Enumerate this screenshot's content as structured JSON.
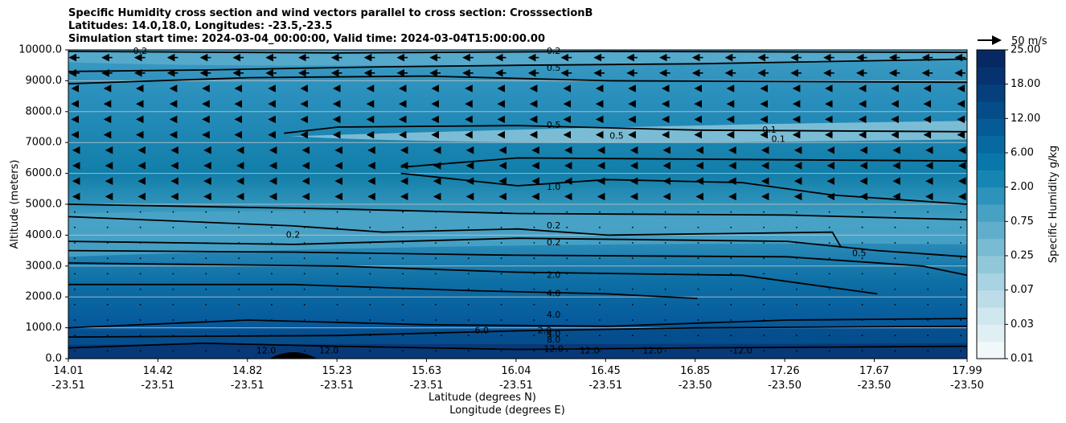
{
  "title_lines": [
    "Specific Humidity cross section and wind vectors parallel to cross section: CrosssectionB",
    "Latitudes: 14.0,18.0, Longitudes: -23.5,-23.5",
    "Simulation start time: 2024-03-04_00:00:00, Valid time: 2024-03-04T15:00:00.00"
  ],
  "chart_data": {
    "type": "heatmap",
    "title": "Specific Humidity cross section and wind vectors parallel to cross section: CrosssectionB",
    "ylabel": "Altitude (meters)",
    "xlabel_lines": [
      "Latitude (degrees N)",
      "Longitude (degrees E)"
    ],
    "ylim": [
      0,
      10000
    ],
    "y_ticks": [
      "0.0",
      "1000.0",
      "2000.0",
      "3000.0",
      "4000.0",
      "5000.0",
      "6000.0",
      "7000.0",
      "8000.0",
      "9000.0",
      "10000.0"
    ],
    "x_ticks": [
      {
        "lat": "14.01",
        "lon": "-23.51"
      },
      {
        "lat": "14.42",
        "lon": "-23.51"
      },
      {
        "lat": "14.82",
        "lon": "-23.51"
      },
      {
        "lat": "15.23",
        "lon": "-23.51"
      },
      {
        "lat": "15.63",
        "lon": "-23.51"
      },
      {
        "lat": "16.04",
        "lon": "-23.51"
      },
      {
        "lat": "16.45",
        "lon": "-23.51"
      },
      {
        "lat": "16.85",
        "lon": "-23.50"
      },
      {
        "lat": "17.26",
        "lon": "-23.50"
      },
      {
        "lat": "17.67",
        "lon": "-23.50"
      },
      {
        "lat": "17.99",
        "lon": "-23.50"
      }
    ],
    "grid": "horizontal",
    "colorbar": {
      "label": "Specific Humidity g/kg",
      "ticks": [
        "0.01",
        "0.03",
        "0.07",
        "0.25",
        "0.75",
        "2.00",
        "6.00",
        "12.00",
        "18.00",
        "25.00"
      ]
    },
    "quiver_key": "50 m/s",
    "contour_labels": [
      "0.2",
      "0.5",
      "0.5",
      "1.0",
      "0.2",
      "0.2",
      "2.0",
      "4.0",
      "4.0",
      "4.0",
      "8.0",
      "12.0",
      "0.2",
      "0.1",
      "0.1",
      "0.5",
      "0.5",
      "0.2",
      "12.0",
      "12.0",
      "12.0",
      "12.0",
      "12.0",
      "2.0",
      "6.0"
    ],
    "colors": {
      "low": "#e4f1f4",
      "mid": "#1e87b4",
      "high": "#08306b"
    }
  }
}
